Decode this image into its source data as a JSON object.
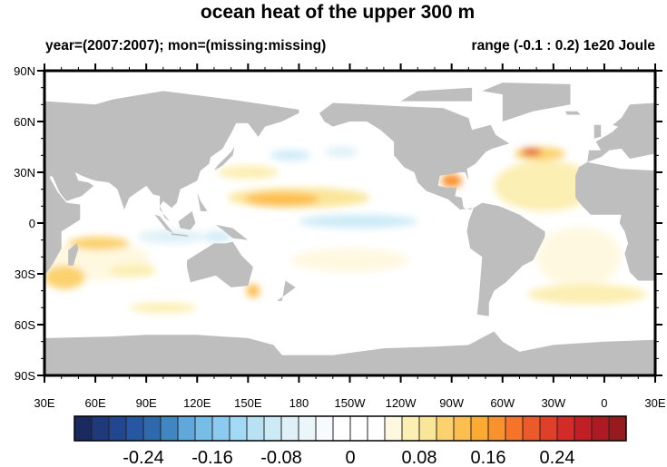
{
  "title": "ocean heat of the upper 300 m",
  "subtitle_left": "year=(2007:2007); mon=(missing:missing)",
  "subtitle_right": "range (-0.1 : 0.2) 1e20 Joule",
  "map": {
    "lon_range": [
      30,
      390
    ],
    "lat_range": [
      -90,
      90
    ],
    "land_color": "#bebebe",
    "lat_labels": [
      {
        "lat": 90,
        "label": "90N"
      },
      {
        "lat": 60,
        "label": "60N"
      },
      {
        "lat": 30,
        "label": "30N"
      },
      {
        "lat": 0,
        "label": "0"
      },
      {
        "lat": -30,
        "label": "30S"
      },
      {
        "lat": -60,
        "label": "60S"
      },
      {
        "lat": -90,
        "label": "90S"
      }
    ],
    "lon_labels": [
      {
        "lon": 30,
        "label": "30E"
      },
      {
        "lon": 60,
        "label": "60E"
      },
      {
        "lon": 90,
        "label": "90E"
      },
      {
        "lon": 120,
        "label": "120E"
      },
      {
        "lon": 150,
        "label": "150E"
      },
      {
        "lon": 180,
        "label": "180"
      },
      {
        "lon": 210,
        "label": "150W"
      },
      {
        "lon": 240,
        "label": "120W"
      },
      {
        "lon": 270,
        "label": "90W"
      },
      {
        "lon": 300,
        "label": "60W"
      },
      {
        "lon": 330,
        "label": "30W"
      },
      {
        "lon": 360,
        "label": "0"
      },
      {
        "lon": 390,
        "label": "30E"
      }
    ]
  },
  "colorbar": {
    "min": -0.32,
    "max": 0.32,
    "step": 0.02,
    "colors": [
      "#1b2a5e",
      "#1e3a7a",
      "#22478f",
      "#2757a3",
      "#3068ad",
      "#3f86c2",
      "#60a7dc",
      "#78bde6",
      "#8ccbef",
      "#a2daf5",
      "#b8e2f4",
      "#cdebf6",
      "#dff1f7",
      "#ebf6fa",
      "#f8fbfd",
      "#ffffff",
      "#ffffff",
      "#ffffff",
      "#fff8e1",
      "#fcefb4",
      "#fae69a",
      "#fbd26e",
      "#fdbd4f",
      "#fdaa33",
      "#f9912e",
      "#f6742a",
      "#ed5a2a",
      "#e0402a",
      "#d32b27",
      "#c11f26",
      "#ad1b22",
      "#971a1e"
    ],
    "labels": [
      {
        "value": -0.24,
        "label": "-0.24"
      },
      {
        "value": -0.16,
        "label": "-0.16"
      },
      {
        "value": -0.08,
        "label": "-0.08"
      },
      {
        "value": 0,
        "label": "0"
      },
      {
        "value": 0.08,
        "label": "0.08"
      },
      {
        "value": 0.16,
        "label": "0.16"
      },
      {
        "value": 0.24,
        "label": "0.24"
      }
    ]
  }
}
